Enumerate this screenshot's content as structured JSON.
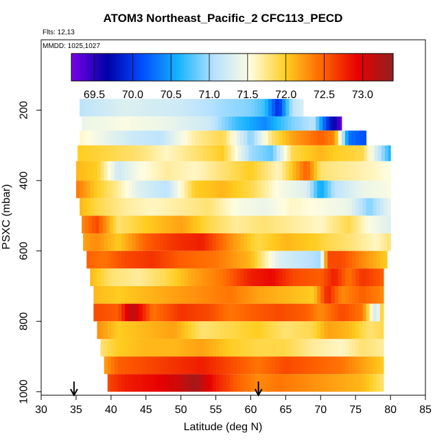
{
  "title": "ATOM3 Northeast_Pacific_2 CFC113_PECD",
  "flights_label": "Flts: 12,13",
  "mmdd_label": "MMDD: 1025,1027",
  "chart_data": {
    "type": "heatmap",
    "title": "ATOM3 Northeast_Pacific_2 CFC113_PECD",
    "xlabel": "Latitude (deg N)",
    "ylabel": "PSXC (mbar)",
    "xlim": [
      30,
      85
    ],
    "ylim": [
      1010,
      0
    ],
    "x_ticks": [
      30,
      35,
      40,
      45,
      50,
      55,
      60,
      65,
      70,
      75,
      80,
      85
    ],
    "y_ticks": [
      200,
      400,
      600,
      800,
      1000
    ],
    "colorbar": {
      "range": [
        69.2,
        73.4
      ],
      "ticks": [
        69.5,
        70.0,
        70.5,
        71.0,
        71.5,
        72.0,
        72.5,
        73.0
      ],
      "tick_labels": [
        "69.5",
        "70.0",
        "70.5",
        "71.0",
        "71.5",
        "72.0",
        "72.5",
        "73.0"
      ],
      "colors": [
        "#7a00e8",
        "#0000a8",
        "#0050ff",
        "#18b4ff",
        "#b8e2ff",
        "#fffde0",
        "#ffcd20",
        "#ff6600",
        "#e80000",
        "#902020"
      ]
    },
    "flight_markers_lat": [
      34.7,
      61.1
    ],
    "layers": [
      {
        "p_top": 168,
        "p_bot": 218,
        "lat_start": 35.5,
        "lat_end": 67.5,
        "points": [
          [
            35.5,
            71.1
          ],
          [
            42,
            71.3
          ],
          [
            50,
            71.2
          ],
          [
            56,
            71.0
          ],
          [
            60,
            70.9
          ],
          [
            62,
            70.7
          ],
          [
            64,
            69.9
          ],
          [
            65,
            70.6
          ],
          [
            66,
            71.1
          ],
          [
            67.5,
            71.3
          ]
        ]
      },
      {
        "p_top": 218,
        "p_bot": 258,
        "lat_start": 35.8,
        "lat_end": 73,
        "points": [
          [
            35.8,
            71.4
          ],
          [
            42,
            71.5
          ],
          [
            48,
            71.4
          ],
          [
            54,
            71.2
          ],
          [
            58,
            70.7
          ],
          [
            62,
            70.4
          ],
          [
            66,
            70.9
          ],
          [
            69,
            71.1
          ],
          [
            71,
            70.0
          ],
          [
            72,
            69.6
          ],
          [
            73,
            69.3
          ]
        ]
      },
      {
        "p_top": 258,
        "p_bot": 300,
        "lat_start": 35.5,
        "lat_end": 76.5,
        "points": [
          [
            35.5,
            71.6
          ],
          [
            39,
            71.4
          ],
          [
            43,
            71.2
          ],
          [
            47,
            71.1
          ],
          [
            52,
            71.7
          ],
          [
            56,
            71.9
          ],
          [
            60,
            70.9
          ],
          [
            63,
            71.8
          ],
          [
            66,
            72.2
          ],
          [
            70,
            72.5
          ],
          [
            72,
            72.3
          ],
          [
            74,
            70.3
          ],
          [
            76.5,
            70.1
          ]
        ]
      },
      {
        "p_top": 300,
        "p_bot": 345,
        "lat_start": 35.2,
        "lat_end": 80,
        "points": [
          [
            35.2,
            72.0
          ],
          [
            40,
            71.9
          ],
          [
            44,
            71.8
          ],
          [
            48,
            71.6
          ],
          [
            52,
            71.8
          ],
          [
            56,
            72.0
          ],
          [
            60,
            71.0
          ],
          [
            63,
            70.8
          ],
          [
            66,
            71.9
          ],
          [
            70,
            72.1
          ],
          [
            72,
            72.0
          ],
          [
            76,
            71.9
          ],
          [
            80,
            70.6
          ]
        ]
      },
      {
        "p_top": 345,
        "p_bot": 400,
        "lat_start": 35.0,
        "lat_end": 80,
        "points": [
          [
            35,
            72.1
          ],
          [
            38,
            72.0
          ],
          [
            41,
            71.2
          ],
          [
            44,
            71.5
          ],
          [
            48,
            71.7
          ],
          [
            52,
            71.6
          ],
          [
            56,
            71.8
          ],
          [
            60,
            72.0
          ],
          [
            64,
            71.6
          ],
          [
            68,
            72.5
          ],
          [
            70,
            71.8
          ],
          [
            74,
            71.7
          ],
          [
            78,
            71.6
          ],
          [
            80,
            71.5
          ]
        ]
      },
      {
        "p_top": 400,
        "p_bot": 450,
        "lat_start": 35.0,
        "lat_end": 80,
        "points": [
          [
            35,
            72.4
          ],
          [
            38,
            72.0
          ],
          [
            41,
            71.7
          ],
          [
            44,
            71.3
          ],
          [
            48,
            71.1
          ],
          [
            52,
            72.0
          ],
          [
            56,
            72.1
          ],
          [
            60,
            71.9
          ],
          [
            64,
            71.5
          ],
          [
            68,
            71.3
          ],
          [
            70,
            70.5
          ],
          [
            72,
            71.1
          ],
          [
            76,
            71.4
          ],
          [
            80,
            71.5
          ]
        ]
      },
      {
        "p_top": 450,
        "p_bot": 500,
        "lat_start": 35.5,
        "lat_end": 80,
        "points": [
          [
            35.5,
            72.1
          ],
          [
            38,
            71.9
          ],
          [
            42,
            71.7
          ],
          [
            46,
            71.6
          ],
          [
            50,
            71.7
          ],
          [
            54,
            71.8
          ],
          [
            58,
            71.5
          ],
          [
            62,
            71.4
          ],
          [
            66,
            71.6
          ],
          [
            70,
            71.5
          ],
          [
            74,
            71.4
          ],
          [
            77,
            70.9
          ],
          [
            80,
            71.4
          ]
        ]
      },
      {
        "p_top": 500,
        "p_bot": 550,
        "lat_start": 35.8,
        "lat_end": 80,
        "points": [
          [
            35.8,
            72.3
          ],
          [
            38,
            72.6
          ],
          [
            41,
            71.8
          ],
          [
            45,
            72.0
          ],
          [
            50,
            72.2
          ],
          [
            54,
            71.9
          ],
          [
            58,
            71.7
          ],
          [
            62,
            71.8
          ],
          [
            66,
            71.7
          ],
          [
            70,
            71.6
          ],
          [
            74,
            71.9
          ],
          [
            77,
            71.5
          ],
          [
            80,
            71.3
          ]
        ]
      },
      {
        "p_top": 550,
        "p_bot": 600,
        "lat_start": 36.0,
        "lat_end": 80,
        "points": [
          [
            36,
            72.2
          ],
          [
            38,
            72.3
          ],
          [
            41,
            72.0
          ],
          [
            45,
            72.5
          ],
          [
            49,
            72.7
          ],
          [
            53,
            72.8
          ],
          [
            57,
            72.3
          ],
          [
            61,
            71.9
          ],
          [
            65,
            72.1
          ],
          [
            69,
            72.0
          ],
          [
            71,
            71.9
          ],
          [
            74,
            71.8
          ],
          [
            78,
            71.6
          ],
          [
            80,
            71.8
          ]
        ]
      },
      {
        "p_top": 600,
        "p_bot": 650,
        "lat_start": 36.5,
        "lat_end": 79.5,
        "points": [
          [
            36.5,
            72.5
          ],
          [
            39,
            72.4
          ],
          [
            42,
            72.6
          ],
          [
            46,
            72.7
          ],
          [
            50,
            72.5
          ],
          [
            55,
            72.4
          ],
          [
            60,
            72.1
          ],
          [
            64,
            71.3
          ],
          [
            68,
            71.1
          ],
          [
            70,
            71.0
          ],
          [
            71,
            72.6
          ],
          [
            73,
            72.6
          ],
          [
            76,
            72.3
          ],
          [
            79.5,
            72.0
          ]
        ]
      },
      {
        "p_top": 650,
        "p_bot": 700,
        "lat_start": 37.0,
        "lat_end": 79.0,
        "points": [
          [
            37,
            72.1
          ],
          [
            40,
            71.8
          ],
          [
            44,
            71.7
          ],
          [
            48,
            71.9
          ],
          [
            52,
            72.2
          ],
          [
            56,
            72.4
          ],
          [
            60,
            72.8
          ],
          [
            63,
            72.9
          ],
          [
            66,
            72.6
          ],
          [
            70,
            72.5
          ],
          [
            72,
            72.8
          ],
          [
            74,
            72.4
          ],
          [
            76,
            72.7
          ],
          [
            79,
            72.5
          ]
        ]
      },
      {
        "p_top": 700,
        "p_bot": 750,
        "lat_start": 37.5,
        "lat_end": 79.0,
        "points": [
          [
            37.5,
            72.1
          ],
          [
            41,
            72.0
          ],
          [
            45,
            72.1
          ],
          [
            49,
            72.2
          ],
          [
            53,
            72.3
          ],
          [
            57,
            72.4
          ],
          [
            61,
            72.2
          ],
          [
            65,
            72.1
          ],
          [
            69,
            72.0
          ],
          [
            71,
            72.8
          ],
          [
            73,
            72.3
          ],
          [
            76,
            72.5
          ],
          [
            79,
            72.3
          ]
        ]
      },
      {
        "p_top": 750,
        "p_bot": 800,
        "lat_start": 37.5,
        "lat_end": 79.0,
        "points": [
          [
            37.5,
            72.6
          ],
          [
            41,
            72.5
          ],
          [
            43,
            73.2
          ],
          [
            46,
            72.4
          ],
          [
            50,
            72.7
          ],
          [
            54,
            72.6
          ],
          [
            57,
            72.4
          ],
          [
            60,
            72.5
          ],
          [
            64,
            72.6
          ],
          [
            68,
            72.5
          ],
          [
            70,
            72.3
          ],
          [
            73,
            72.6
          ],
          [
            76,
            72.4
          ],
          [
            78,
            71.1
          ],
          [
            79,
            72.2
          ]
        ]
      },
      {
        "p_top": 800,
        "p_bot": 850,
        "lat_start": 38.0,
        "lat_end": 79.0,
        "points": [
          [
            38,
            72.3
          ],
          [
            41,
            72.0
          ],
          [
            45,
            72.1
          ],
          [
            49,
            72.2
          ],
          [
            53,
            71.8
          ],
          [
            57,
            71.9
          ],
          [
            61,
            72.0
          ],
          [
            65,
            71.8
          ],
          [
            69,
            71.9
          ],
          [
            71,
            72.2
          ],
          [
            74,
            72.1
          ],
          [
            77,
            71.8
          ],
          [
            79,
            71.9
          ]
        ]
      },
      {
        "p_top": 850,
        "p_bot": 900,
        "lat_start": 38.5,
        "lat_end": 79.0,
        "points": [
          [
            38.5,
            71.8
          ],
          [
            41,
            72.0
          ],
          [
            45,
            72.1
          ],
          [
            49,
            72.1
          ],
          [
            53,
            72.2
          ],
          [
            57,
            72.0
          ],
          [
            61,
            71.9
          ],
          [
            65,
            71.9
          ],
          [
            69,
            71.7
          ],
          [
            73,
            71.6
          ],
          [
            76,
            71.8
          ],
          [
            79,
            71.7
          ]
        ]
      },
      {
        "p_top": 900,
        "p_bot": 950,
        "lat_start": 39.0,
        "lat_end": 79.0,
        "points": [
          [
            39,
            72.2
          ],
          [
            41,
            72.5
          ],
          [
            45,
            72.6
          ],
          [
            49,
            72.7
          ],
          [
            53,
            72.8
          ],
          [
            57,
            72.6
          ],
          [
            61,
            72.4
          ],
          [
            65,
            72.6
          ],
          [
            69,
            72.5
          ],
          [
            73,
            72.4
          ],
          [
            76,
            72.2
          ],
          [
            79,
            72.0
          ]
        ]
      },
      {
        "p_top": 950,
        "p_bot": 1000,
        "lat_start": 39.5,
        "lat_end": 79.0,
        "points": [
          [
            39.5,
            72.6
          ],
          [
            42,
            72.8
          ],
          [
            46,
            72.9
          ],
          [
            50,
            73.1
          ],
          [
            52,
            73.3
          ],
          [
            55,
            72.8
          ],
          [
            58,
            72.5
          ],
          [
            61,
            72.3
          ],
          [
            64,
            72.4
          ],
          [
            68,
            72.3
          ],
          [
            72,
            72.2
          ],
          [
            76,
            72.1
          ],
          [
            79,
            71.8
          ]
        ]
      }
    ]
  }
}
